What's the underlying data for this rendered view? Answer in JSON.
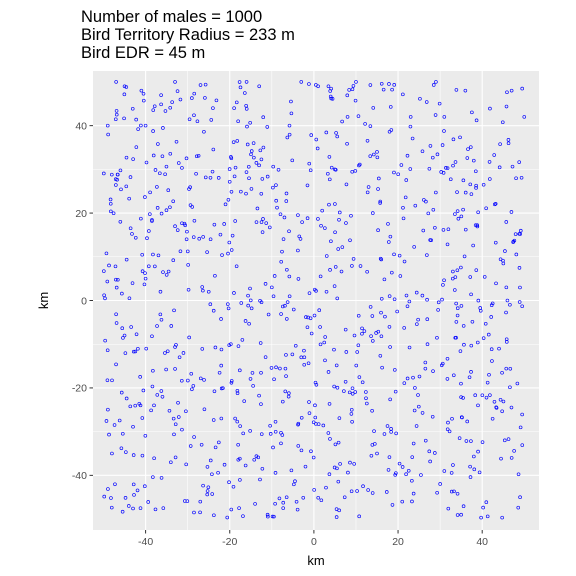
{
  "chart_data": {
    "type": "scatter",
    "title_lines": [
      "Number of males = 1000",
      "Bird Territory Radius = 233 m",
      "Bird EDR = 45 m"
    ],
    "xlabel": "km",
    "ylabel": "km",
    "xlim": [
      -52.5,
      53.5
    ],
    "ylim": [
      -52.5,
      52.5
    ],
    "x_ticks": [
      -40,
      -20,
      0,
      20,
      40
    ],
    "y_ticks": [
      -40,
      -20,
      0,
      20,
      40
    ],
    "x_tick_labels": [
      "-40",
      "-20",
      "0",
      "20",
      "40"
    ],
    "y_tick_labels": [
      "-40",
      "-20",
      "0",
      "20",
      "40"
    ],
    "grid": true,
    "legend": "none",
    "point_count": 1000,
    "point_range": {
      "x": [
        -50,
        50
      ],
      "y": [
        -50,
        50
      ]
    },
    "points_sample": [
      [
        -47,
        50
      ],
      [
        -45,
        49
      ],
      [
        -41,
        48
      ],
      [
        -33,
        50
      ],
      [
        -16,
        50
      ],
      [
        -13,
        49
      ],
      [
        -3,
        50
      ],
      [
        1,
        49
      ],
      [
        10,
        50
      ],
      [
        29,
        50
      ],
      [
        36,
        48
      ],
      [
        47,
        48
      ],
      [
        -49,
        40
      ],
      [
        -40,
        40
      ],
      [
        -24,
        44
      ],
      [
        -18,
        41
      ],
      [
        8,
        42
      ],
      [
        23,
        42
      ],
      [
        31,
        42
      ],
      [
        50,
        42
      ],
      [
        -36,
        33
      ],
      [
        -28,
        29
      ],
      [
        -12,
        35
      ],
      [
        5,
        30
      ],
      [
        15,
        34
      ],
      [
        38,
        32
      ],
      [
        -46,
        18
      ],
      [
        -33,
        17
      ],
      [
        -21,
        22
      ],
      [
        -7,
        19
      ],
      [
        14,
        20
      ],
      [
        26,
        16
      ],
      [
        43,
        22
      ],
      [
        -40,
        5
      ],
      [
        -25,
        2
      ],
      [
        -10,
        3
      ],
      [
        3,
        2
      ],
      [
        18,
        1
      ],
      [
        33,
        5
      ],
      [
        46,
        0
      ],
      [
        -45,
        -8
      ],
      [
        -31,
        -12
      ],
      [
        -17,
        -9
      ],
      [
        -3,
        -13
      ],
      [
        12,
        -7
      ],
      [
        27,
        -10
      ],
      [
        44,
        -11
      ],
      [
        -38,
        -24
      ],
      [
        -22,
        -27
      ],
      [
        -6,
        -22
      ],
      [
        9,
        -25
      ],
      [
        24,
        -20
      ],
      [
        39,
        -24
      ],
      [
        -48,
        -35
      ],
      [
        -34,
        -37
      ],
      [
        -18,
        -33
      ],
      [
        -2,
        -38
      ],
      [
        15,
        -35
      ],
      [
        31,
        -39
      ],
      [
        47,
        -36
      ],
      [
        -44,
        -47
      ],
      [
        -27,
        -46
      ],
      [
        -11,
        -49
      ],
      [
        6,
        -48
      ],
      [
        21,
        -46
      ],
      [
        35,
        -49
      ],
      [
        49,
        -45
      ]
    ]
  },
  "colors": {
    "panel": "#ebebeb",
    "grid_major": "#ffffff",
    "point": "#0000ff",
    "tick_text": "#4d4d4d",
    "tick_mark": "#333333"
  }
}
